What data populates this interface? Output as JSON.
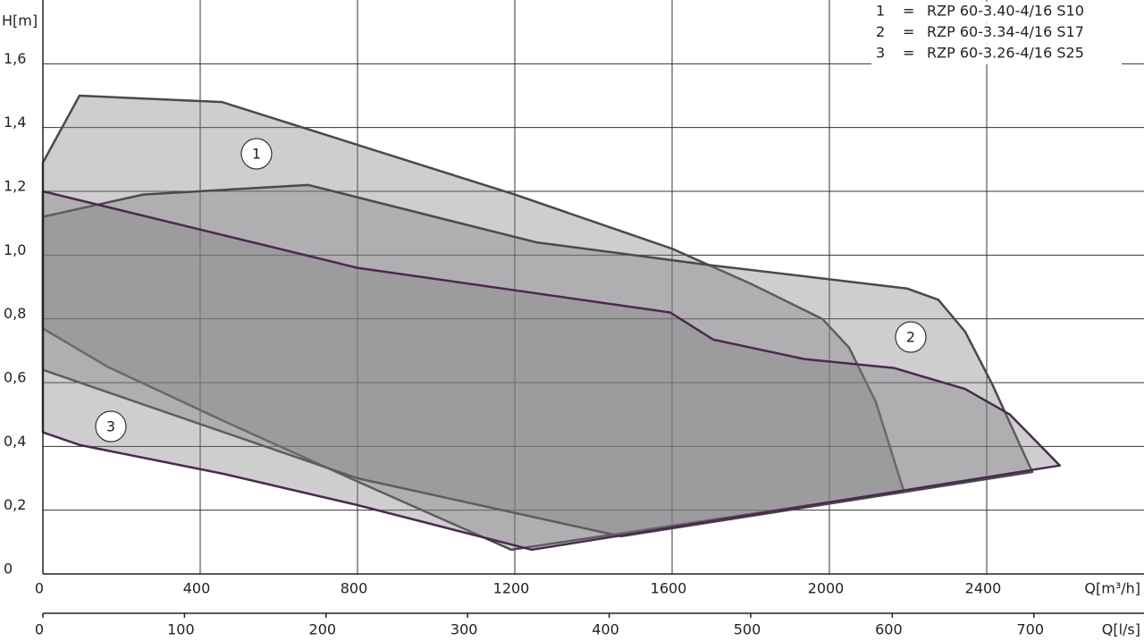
{
  "chart_data": {
    "type": "area",
    "y_label": "H[m]",
    "x_label": "Q[m³/h]",
    "x2_label": "Q[l/s]",
    "legend_separator": "=",
    "xlim": [
      0,
      2800
    ],
    "xticks": [
      0,
      400,
      800,
      1200,
      1600,
      2000,
      2400
    ],
    "x2lim": [
      0,
      777.8
    ],
    "x2ticks": [
      0,
      100,
      200,
      300,
      400,
      500,
      600,
      700
    ],
    "ylim": [
      0,
      1.8
    ],
    "yticks": [
      0,
      {
        "value": 0.2,
        "label": "0,2"
      },
      {
        "value": 0.4,
        "label": "0,4"
      },
      {
        "value": 0.6,
        "label": "0,6"
      },
      {
        "value": 0.8,
        "label": "0,8"
      },
      {
        "value": 1.0,
        "label": "1,0"
      },
      {
        "value": 1.2,
        "label": "1,2"
      },
      {
        "value": 1.4,
        "label": "1,4"
      },
      {
        "value": 1.6,
        "label": "1,6"
      }
    ],
    "grid": true,
    "legend": "top-right",
    "series": [
      {
        "label": "1",
        "name": "RZP 60-3.40-4/16 S10",
        "color": "#4a4a4c",
        "x": [
          0,
          93,
          455,
          1200,
          1600,
          1800,
          1982,
          2050,
          2118,
          2189,
          1191,
          800,
          459,
          164,
          0
        ],
        "values": [
          1.29,
          1.5,
          1.48,
          1.19,
          1.02,
          0.91,
          0.8,
          0.71,
          0.54,
          0.26,
          0.076,
          0.29,
          0.48,
          0.65,
          0.77
        ]
      },
      {
        "label": "2",
        "name": "RZP 60-3.34-4/16 S17",
        "color": "#4a4a4c",
        "x": [
          0,
          255,
          675,
          1255,
          1686,
          2198,
          2277,
          2345,
          2414,
          2516,
          1470,
          800,
          0
        ],
        "values": [
          1.12,
          1.19,
          1.22,
          1.04,
          0.97,
          0.895,
          0.86,
          0.76,
          0.595,
          0.32,
          0.118,
          0.3,
          0.64
        ]
      },
      {
        "label": "3",
        "name": "RZP 60-3.26-4/16 S25",
        "color": "#4b2a4e",
        "x": [
          0,
          800,
          1595,
          1705,
          1936,
          2164,
          2345,
          2459,
          2586,
          1243,
          800,
          459,
          95,
          0
        ],
        "values": [
          1.2,
          0.96,
          0.82,
          0.735,
          0.674,
          0.646,
          0.58,
          0.5,
          0.34,
          0.076,
          0.216,
          0.314,
          0.404,
          0.444
        ]
      }
    ]
  }
}
